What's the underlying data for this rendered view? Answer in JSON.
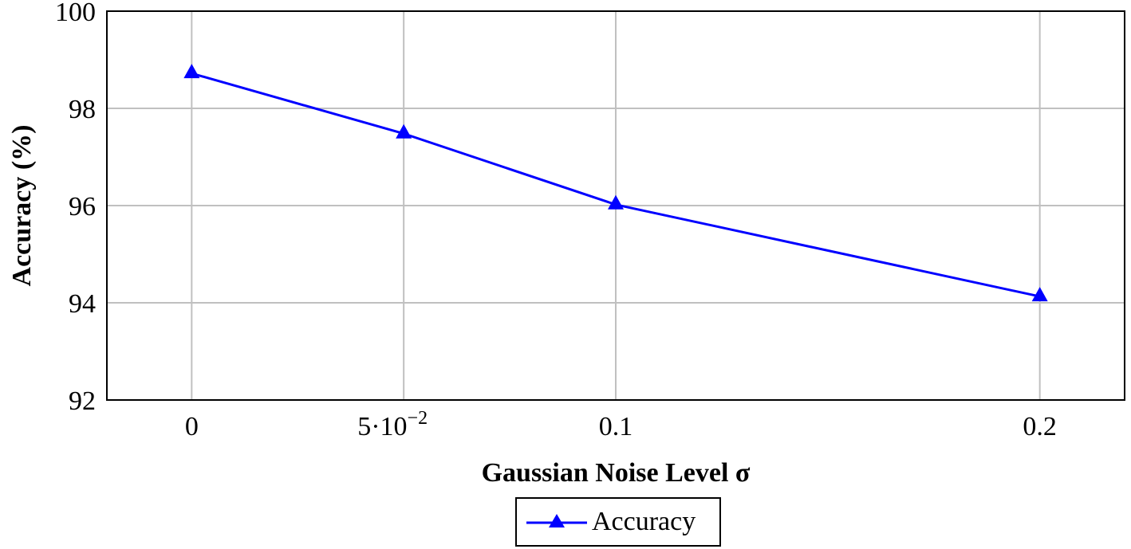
{
  "chart_data": {
    "type": "line",
    "title": "",
    "xlabel": "Gaussian Noise Level σ",
    "ylabel": "Accuracy (%)",
    "categories": [
      "0",
      "5·10⁻²",
      "0.1",
      "0.2"
    ],
    "x": [
      0,
      0.05,
      0.1,
      0.2
    ],
    "series": [
      {
        "name": "Accuracy",
        "values": [
          98.72,
          97.48,
          96.02,
          94.13
        ],
        "color": "#0000ff",
        "marker": "triangle"
      }
    ],
    "ylim": [
      92,
      100
    ],
    "xlim": [
      -0.02,
      0.22
    ],
    "yticks": [
      92,
      94,
      96,
      98,
      100
    ],
    "xticks": [
      0,
      0.05,
      0.1,
      0.2
    ],
    "xtick_labels": [
      "0",
      "5·10",
      "0.1",
      "0.2"
    ],
    "xtick_exponent": "−2",
    "grid": true,
    "legend_position": "below"
  },
  "legend": {
    "label": "Accuracy"
  },
  "axes": {
    "xlabel": "Gaussian Noise Level σ",
    "ylabel": "Accuracy (%)"
  }
}
